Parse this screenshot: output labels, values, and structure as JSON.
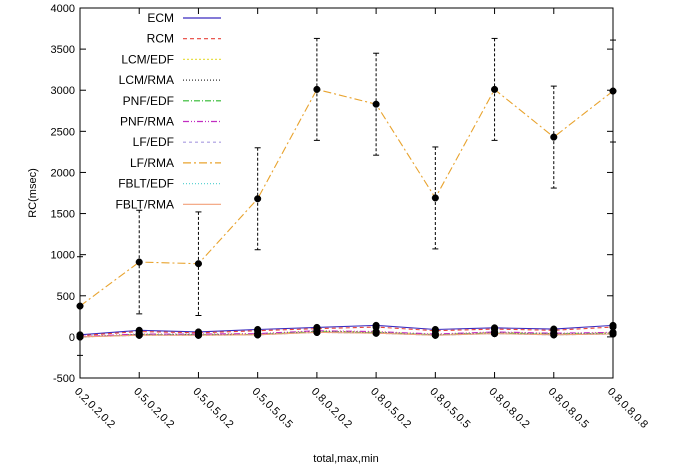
{
  "chart_data": {
    "type": "line",
    "title": "",
    "xlabel": "total,max,min",
    "ylabel": "RC(msec)",
    "categories": [
      "0.2,0.2,0.2",
      "0.5,0.2,0.2",
      "0.5,0.5,0.2",
      "0.5,0.5,0.5",
      "0.8,0.2,0.2",
      "0.8,0.5,0.2",
      "0.8,0.5,0.5",
      "0.8,0.8,0.2",
      "0.8,0.8,0.5",
      "0.8,0.8,0.8"
    ],
    "ylim": [
      -500,
      4000
    ],
    "yticks": [
      -500,
      0,
      500,
      1000,
      1500,
      2000,
      2500,
      3000,
      3500,
      4000
    ],
    "grid": false,
    "legend_position": "top-left",
    "series": [
      {
        "name": "ECM",
        "color": "#3a2bbf",
        "dash": "solid",
        "values": [
          25,
          80,
          60,
          90,
          115,
          140,
          90,
          110,
          95,
          140
        ]
      },
      {
        "name": "RCM",
        "color": "#e8433a",
        "dash": "4,3",
        "values": [
          15,
          65,
          50,
          75,
          100,
          120,
          75,
          95,
          80,
          120
        ]
      },
      {
        "name": "LCM/EDF",
        "color": "#e8e04a",
        "dash": "2,2",
        "values": [
          0,
          30,
          30,
          35,
          70,
          60,
          30,
          55,
          40,
          50
        ]
      },
      {
        "name": "LCM/RMA",
        "color": "#333333",
        "dash": "1,2",
        "values": [
          0,
          30,
          30,
          30,
          65,
          55,
          25,
          50,
          35,
          45
        ]
      },
      {
        "name": "PNF/EDF",
        "color": "#2eb82e",
        "dash": "6,2,1,2",
        "values": [
          0,
          25,
          25,
          30,
          60,
          50,
          25,
          45,
          30,
          40
        ]
      },
      {
        "name": "PNF/RMA",
        "color": "#c12ec1",
        "dash": "6,2,1,2,1,2",
        "values": [
          5,
          35,
          35,
          40,
          75,
          65,
          35,
          60,
          45,
          55
        ]
      },
      {
        "name": "LF/EDF",
        "color": "#a89be0",
        "dash": "3,3",
        "values": [
          0,
          20,
          20,
          25,
          55,
          45,
          20,
          40,
          25,
          35
        ]
      },
      {
        "name": "LF/RMA",
        "color": "#e8a32e",
        "dash": "8,3,2,3",
        "values": [
          375,
          910,
          890,
          1680,
          3010,
          2830,
          1690,
          3010,
          2430,
          2990
        ],
        "error": [
          600,
          630,
          630,
          620,
          620,
          620,
          620,
          620,
          620,
          620
        ]
      },
      {
        "name": "FBLT/EDF",
        "color": "#5fd3d3",
        "dash": "1,2",
        "values": [
          0,
          20,
          20,
          25,
          55,
          45,
          20,
          40,
          25,
          35
        ]
      },
      {
        "name": "FBLT/RMA",
        "color": "#f2a07a",
        "dash": "solid",
        "values": [
          0,
          20,
          20,
          25,
          55,
          45,
          20,
          40,
          25,
          35
        ]
      }
    ]
  }
}
